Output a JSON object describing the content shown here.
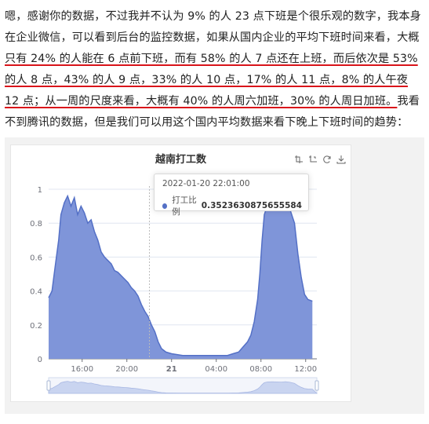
{
  "article": {
    "segments": [
      {
        "text": "嗯，感谢你的数据，不过我并不认为 9% 的人 23 点下班是个很乐观的数字，我本身在企业微信，可以看到后台的监控数据，如果从国内企业的平均下班时间来看，大概",
        "underline": false
      },
      {
        "text": "只有 24% 的人能在 6 点前下班，而有 58% 的人 7 点还在上班，而后依次是 53% 的人 8 点，43% 的人 9 点，33% 的人 10 点，17% 的人 11 点，8% 的人午夜 12 点；从一周的尺度来看，大概有 40% 的人周六加班，30% 的人周日加班。",
        "underline": true
      },
      {
        "text": "我看不到腾讯的数据，但是我们可以用这个国内平均数据来看下晚上下班时间的趋势：",
        "underline": false
      }
    ]
  },
  "chart": {
    "title": "越南打工数",
    "toolbox": [
      "zoom-icon",
      "zoom-reset-icon",
      "restore-icon",
      "save-icon"
    ],
    "tooltip": {
      "time": "2022-01-20 22:01:00",
      "series": "打工比例",
      "value": "0.3523630875655584"
    },
    "colors": {
      "area": "#5470c6",
      "fill": "#7f95d9"
    }
  },
  "chart_data": {
    "type": "area",
    "ylim": [
      0,
      1
    ],
    "yticks": [
      "0",
      "0.2",
      "0.4",
      "0.6",
      "0.8",
      "1"
    ],
    "xticks": [
      {
        "x": 16,
        "label": "16:00"
      },
      {
        "x": 20,
        "label": "20:00"
      },
      {
        "x": 24,
        "label": "21"
      },
      {
        "x": 28,
        "label": "04:00"
      },
      {
        "x": 32,
        "label": "08:00"
      },
      {
        "x": 36,
        "label": "12:00"
      }
    ],
    "xrange": [
      13,
      37
    ],
    "series": [
      {
        "name": "打工比例",
        "points": [
          [
            13.0,
            0.36
          ],
          [
            13.3,
            0.4
          ],
          [
            13.6,
            0.55
          ],
          [
            13.9,
            0.7
          ],
          [
            14.1,
            0.85
          ],
          [
            14.4,
            0.92
          ],
          [
            14.7,
            0.96
          ],
          [
            15.0,
            0.9
          ],
          [
            15.3,
            0.95
          ],
          [
            15.6,
            0.85
          ],
          [
            15.9,
            0.9
          ],
          [
            16.2,
            0.86
          ],
          [
            16.5,
            0.8
          ],
          [
            16.8,
            0.82
          ],
          [
            17.1,
            0.75
          ],
          [
            17.4,
            0.7
          ],
          [
            17.7,
            0.63
          ],
          [
            18.0,
            0.6
          ],
          [
            18.3,
            0.58
          ],
          [
            18.6,
            0.56
          ],
          [
            18.9,
            0.52
          ],
          [
            19.2,
            0.51
          ],
          [
            19.5,
            0.49
          ],
          [
            19.8,
            0.47
          ],
          [
            20.1,
            0.45
          ],
          [
            20.4,
            0.42
          ],
          [
            20.7,
            0.4
          ],
          [
            21.0,
            0.37
          ],
          [
            21.3,
            0.32
          ],
          [
            21.6,
            0.28
          ],
          [
            21.9,
            0.25
          ],
          [
            22.2,
            0.2
          ],
          [
            22.5,
            0.16
          ],
          [
            22.8,
            0.1
          ],
          [
            23.1,
            0.06
          ],
          [
            23.5,
            0.04
          ],
          [
            24.0,
            0.03
          ],
          [
            25.0,
            0.02
          ],
          [
            26.0,
            0.02
          ],
          [
            27.0,
            0.02
          ],
          [
            28.0,
            0.02
          ],
          [
            29.0,
            0.02
          ],
          [
            29.5,
            0.03
          ],
          [
            30.0,
            0.04
          ],
          [
            30.4,
            0.07
          ],
          [
            30.8,
            0.1
          ],
          [
            31.1,
            0.14
          ],
          [
            31.4,
            0.22
          ],
          [
            31.7,
            0.35
          ],
          [
            31.9,
            0.5
          ],
          [
            32.1,
            0.7
          ],
          [
            32.3,
            0.85
          ],
          [
            32.6,
            0.91
          ],
          [
            33.0,
            0.92
          ],
          [
            33.4,
            0.91
          ],
          [
            33.8,
            0.9
          ],
          [
            34.2,
            0.93
          ],
          [
            34.6,
            0.88
          ],
          [
            35.0,
            0.8
          ],
          [
            35.3,
            0.62
          ],
          [
            35.6,
            0.48
          ],
          [
            35.9,
            0.38
          ],
          [
            36.2,
            0.35
          ],
          [
            36.6,
            0.34
          ]
        ]
      }
    ]
  }
}
